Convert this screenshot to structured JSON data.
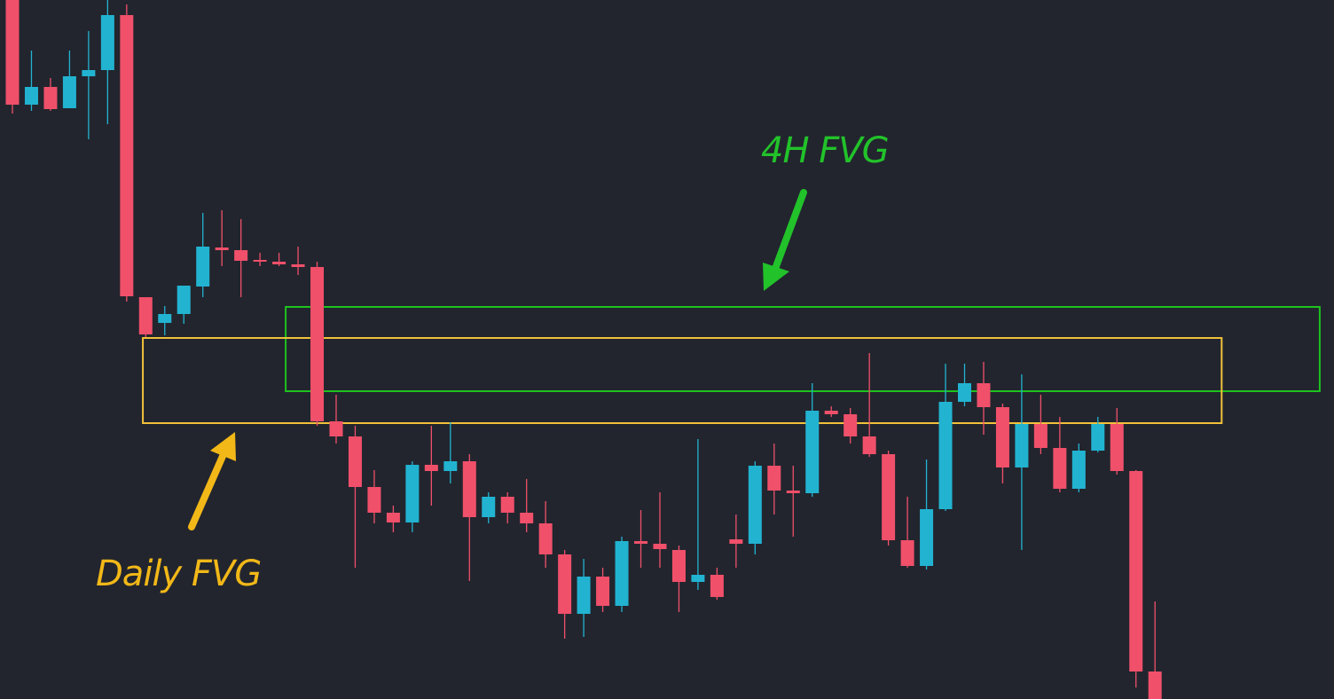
{
  "chart_data": {
    "type": "candlestick",
    "up_color": "#22b3d1",
    "down_color": "#f0506a",
    "ylim": [
      0,
      788
    ],
    "open": [
      788,
      670,
      690,
      666,
      702,
      709,
      771,
      453,
      424,
      434,
      465,
      509,
      506,
      495,
      493,
      490,
      487,
      313,
      296,
      239,
      210,
      199,
      264,
      257,
      268,
      205,
      228,
      210,
      198,
      163,
      96,
      138,
      105,
      178,
      175,
      168,
      132,
      140,
      180,
      175,
      263,
      235,
      232,
      325,
      321,
      296,
      276,
      179,
      150,
      214,
      335,
      356,
      329,
      261,
      310,
      283,
      237,
      280,
      310,
      257,
      31
    ],
    "high": [
      788,
      731,
      700,
      731,
      753,
      788,
      783,
      453,
      443,
      466,
      548,
      551,
      541,
      503,
      503,
      510,
      493,
      343,
      308,
      258,
      218,
      268,
      308,
      312,
      276,
      233,
      233,
      248,
      223,
      168,
      158,
      148,
      183,
      213,
      233,
      173,
      293,
      148,
      208,
      268,
      288,
      263,
      356,
      330,
      328,
      390,
      280,
      228,
      270,
      378,
      378,
      380,
      333,
      366,
      343,
      318,
      288,
      318,
      328,
      258,
      110
    ],
    "low": [
      660,
      663,
      663,
      666,
      631,
      648,
      448,
      408,
      410,
      423,
      453,
      488,
      453,
      488,
      488,
      478,
      308,
      288,
      148,
      198,
      188,
      188,
      218,
      243,
      133,
      198,
      198,
      188,
      148,
      68,
      70,
      98,
      98,
      148,
      148,
      98,
      123,
      112,
      148,
      163,
      208,
      183,
      228,
      318,
      288,
      273,
      173,
      148,
      146,
      212,
      330,
      298,
      243,
      168,
      276,
      233,
      233,
      278,
      253,
      13,
      0
    ],
    "close": [
      670,
      690,
      665,
      702,
      709,
      771,
      454,
      411,
      434,
      466,
      510,
      506,
      494,
      493,
      490,
      487,
      313,
      296,
      239,
      210,
      199,
      264,
      257,
      268,
      205,
      228,
      210,
      198,
      163,
      96,
      138,
      105,
      178,
      175,
      169,
      132,
      140,
      115,
      175,
      263,
      235,
      232,
      325,
      321,
      296,
      276,
      179,
      150,
      214,
      335,
      356,
      329,
      261,
      310,
      283,
      237,
      280,
      310,
      257,
      31,
      0
    ],
    "zones": [
      {
        "top": 442,
        "bottom": 347,
        "x_start": 14.35,
        "x_end": 68.65,
        "color": "#1ec21e"
      },
      {
        "top": 407,
        "bottom": 311,
        "x_start": 6.85,
        "x_end": 63.5,
        "color": "#f2c13a"
      }
    ],
    "annotations": [
      {
        "text": "4H FVG",
        "color": "#22c22a"
      },
      {
        "text": "Daily FVG",
        "color": "#f2b818"
      }
    ]
  }
}
